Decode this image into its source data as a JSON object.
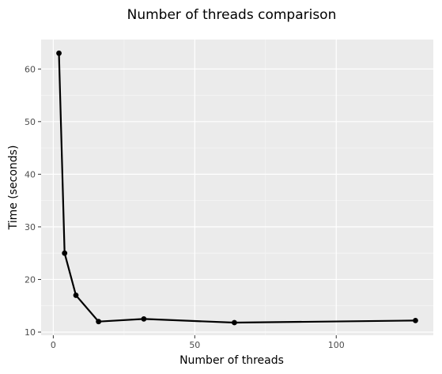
{
  "chart_data": {
    "type": "line",
    "title": "Number of threads comparison",
    "xlabel": "Number of threads",
    "ylabel": "Time (seconds)",
    "x": [
      2,
      4,
      8,
      16,
      32,
      64,
      128
    ],
    "series": [
      {
        "values": [
          63.0,
          25.0,
          17.0,
          12.0,
          12.5,
          11.8,
          12.2
        ]
      }
    ],
    "xlim": [
      -4.3,
      134.3
    ],
    "ylim": [
      9.4,
      65.6
    ],
    "xticks": [
      0,
      50,
      100
    ],
    "yticks": [
      10,
      20,
      30,
      40,
      50,
      60
    ],
    "grid": true,
    "colors": {
      "panel": "#ebebeb",
      "grid_major": "#ffffff",
      "grid_minor": "#f5f5f5",
      "line": "#000000",
      "tick_text": "#4d4d4d",
      "tick_mark": "#333333"
    }
  }
}
